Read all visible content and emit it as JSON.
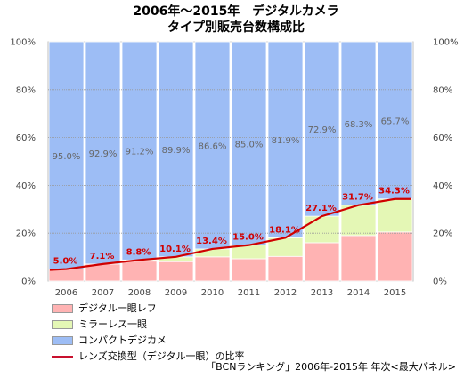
{
  "header": {
    "title_line_1": "2006年～2015年　デジタルカメラ",
    "title_line_2": "タイプ別販売台数構成比"
  },
  "source_note": "「BCNランキング」2006年-2015年 年次<最大パネル>",
  "chart_data": {
    "type": "bar",
    "stacked": true,
    "categories": [
      "2006",
      "2007",
      "2008",
      "2009",
      "2010",
      "2011",
      "2012",
      "2013",
      "2014",
      "2015"
    ],
    "series": [
      {
        "name": "デジタル一眼レフ",
        "color": "#ffb3b3",
        "values": [
          5.0,
          7.1,
          8.3,
          8.1,
          10.1,
          9.3,
          10.3,
          16.0,
          19.0,
          20.5
        ]
      },
      {
        "name": "ミラーレス一眼",
        "color": "#e4f7b5",
        "values": [
          0,
          0,
          0.5,
          2.0,
          3.3,
          5.7,
          7.8,
          11.1,
          12.7,
          13.8
        ]
      },
      {
        "name": "コンパクトデジカメ",
        "color": "#9dbdf5",
        "values": [
          95.0,
          92.9,
          91.2,
          89.9,
          86.6,
          85.0,
          81.9,
          72.9,
          68.3,
          65.7
        ],
        "labels": [
          "95.0%",
          "92.9%",
          "91.2%",
          "89.9%",
          "86.6%",
          "85.0%",
          "81.9%",
          "72.9%",
          "68.3%",
          "65.7%"
        ]
      }
    ],
    "line_series": {
      "name": "レンズ交換型（デジタル一眼）の比率",
      "color": "#d00000",
      "values": [
        5.0,
        7.1,
        8.8,
        10.1,
        13.4,
        15.0,
        18.1,
        27.1,
        31.7,
        34.3
      ],
      "labels": [
        "5.0%",
        "7.1%",
        "8.8%",
        "10.1%",
        "13.4%",
        "15.0%",
        "18.1%",
        "27.1%",
        "31.7%",
        "34.3%"
      ]
    },
    "ylim": [
      0,
      100
    ],
    "y_ticks": [
      "0%",
      "20%",
      "40%",
      "60%",
      "80%",
      "100%"
    ],
    "y_tick_values": [
      0,
      20,
      40,
      60,
      80,
      100
    ],
    "secondary_axis": true,
    "legend_position": "bottom-left",
    "grid": true
  }
}
